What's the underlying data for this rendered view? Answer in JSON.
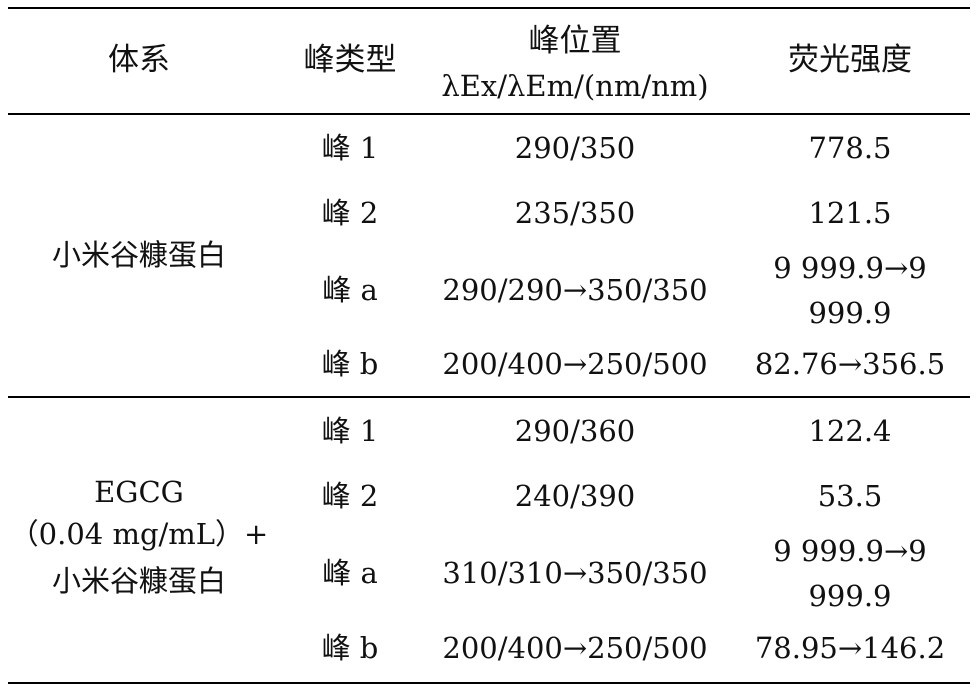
{
  "header": {
    "system": "体系",
    "peak_type": "峰类型",
    "peak_position_line1": "峰位置",
    "peak_position_line2": "λEx/λEm/(nm/nm)",
    "intensity": "荧光强度"
  },
  "groups": [
    {
      "system_lines": [
        "小米谷糠蛋白"
      ],
      "rows": [
        {
          "peak": "峰 1",
          "position": "290/350",
          "intensity_lines": [
            "778.5"
          ]
        },
        {
          "peak": "峰 2",
          "position": "235/350",
          "intensity_lines": [
            "121.5"
          ]
        },
        {
          "peak": "峰 a",
          "position": "290/290→350/350",
          "intensity_lines": [
            "9 999.9→9",
            "999.9"
          ]
        },
        {
          "peak": "峰 b",
          "position": "200/400→250/500",
          "intensity_lines": [
            "82.76→356.5"
          ]
        }
      ]
    },
    {
      "system_lines": [
        "EGCG",
        "（0.04 mg/mL）+",
        "小米谷糠蛋白"
      ],
      "rows": [
        {
          "peak": "峰 1",
          "position": "290/360",
          "intensity_lines": [
            "122.4"
          ]
        },
        {
          "peak": "峰 2",
          "position": "240/390",
          "intensity_lines": [
            "53.5"
          ]
        },
        {
          "peak": "峰 a",
          "position": "310/310→350/350",
          "intensity_lines": [
            "9 999.9→9",
            "999.9"
          ]
        },
        {
          "peak": "峰 b",
          "position": "200/400→250/500",
          "intensity_lines": [
            "78.95→146.2"
          ]
        }
      ]
    }
  ]
}
